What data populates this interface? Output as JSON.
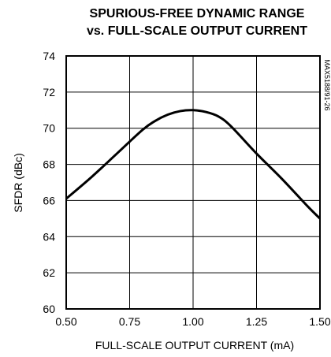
{
  "chart_data": {
    "type": "line",
    "title_line1": "SPURIOUS-FREE DYNAMIC RANGE",
    "title_line2": "vs. FULL-SCALE OUTPUT CURRENT",
    "xlabel": "FULL-SCALE OUTPUT CURRENT (mA)",
    "ylabel": "SFDR (dBc)",
    "side_label": "MAX5188/91-26",
    "xlim": [
      0.5,
      1.5
    ],
    "ylim": [
      60,
      74
    ],
    "x_ticks": [
      0.5,
      0.75,
      1.0,
      1.25,
      1.5
    ],
    "x_tick_labels": [
      "0.50",
      "0.75",
      "1.00",
      "1.25",
      "1.50"
    ],
    "y_ticks": [
      60,
      62,
      64,
      66,
      68,
      70,
      72,
      74
    ],
    "y_tick_labels": [
      "60",
      "62",
      "64",
      "66",
      "68",
      "70",
      "72",
      "74"
    ],
    "grid": true,
    "series": [
      {
        "x": [
          0.5,
          0.6,
          0.7,
          0.8,
          0.85,
          0.9,
          0.95,
          1.0,
          1.05,
          1.1,
          1.15,
          1.25,
          1.35,
          1.45,
          1.5
        ],
        "y": [
          66.1,
          67.3,
          68.6,
          69.9,
          70.4,
          70.75,
          70.95,
          71.0,
          70.9,
          70.65,
          70.1,
          68.6,
          67.2,
          65.7,
          65.0
        ]
      }
    ]
  }
}
